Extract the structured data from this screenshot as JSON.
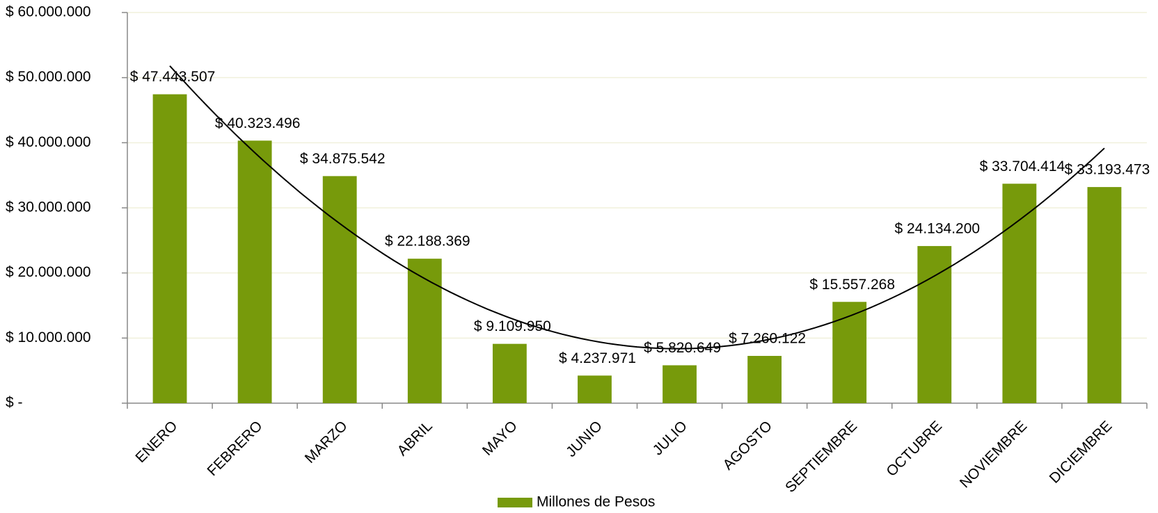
{
  "chart_data": {
    "type": "bar",
    "categories": [
      "ENERO",
      "FEBRERO",
      "MARZO",
      "ABRIL",
      "MAYO",
      "JUNIO",
      "JULIO",
      "AGOSTO",
      "SEPTIEMBRE",
      "OCTUBRE",
      "NOVIEMBRE",
      "DICIEMBRE"
    ],
    "series": [
      {
        "name": "Millones de Pesos",
        "color": "#779a0b",
        "values": [
          47443507,
          40323496,
          34875542,
          22188369,
          9109950,
          4237971,
          5820649,
          7260122,
          15557268,
          24134200,
          33704414,
          33193473
        ],
        "value_labels": [
          "$ 47.443.507",
          "$ 40.323.496",
          "$ 34.875.542",
          "$ 22.188.369",
          "$ 9.109.950",
          "$ 4.237.971",
          "$ 5.820.649",
          "$ 7.260.122",
          "$ 15.557.268",
          "$ 24.134.200",
          "$ 33.704.414",
          "$ 33.193.473"
        ]
      }
    ],
    "ylim": [
      0,
      60000000
    ],
    "yticks": [
      {
        "value": 0,
        "label": "$ -"
      },
      {
        "value": 10000000,
        "label": "$ 10.000.000"
      },
      {
        "value": 20000000,
        "label": "$ 20.000.000"
      },
      {
        "value": 30000000,
        "label": "$ 30.000.000"
      },
      {
        "value": 40000000,
        "label": "$ 40.000.000"
      },
      {
        "value": 50000000,
        "label": "$ 50.000.000"
      },
      {
        "value": 60000000,
        "label": "$ 60.000.000"
      }
    ],
    "grid": true,
    "trendline": "polynomial",
    "legend": "bottom"
  }
}
